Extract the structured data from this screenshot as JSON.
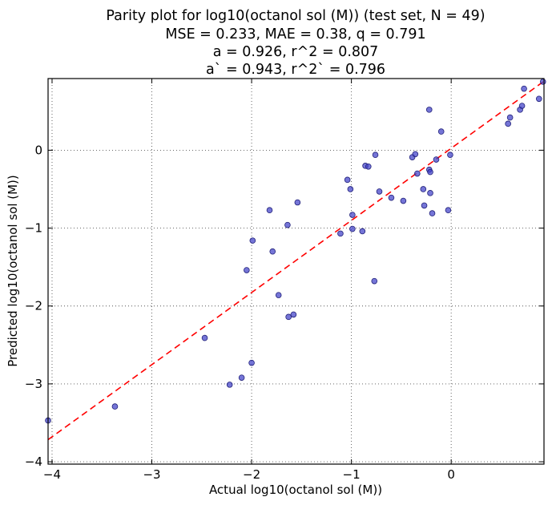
{
  "chart_data": {
    "type": "scatter",
    "title_lines": [
      "Parity plot for log10(octanol sol (M)) (test set, N = 49)",
      "MSE = 0.233, MAE = 0.38, q = 0.791",
      "a = 0.926, r^2 = 0.807",
      "a` = 0.943, r^2` = 0.796"
    ],
    "xlabel": "Actual log10(octanol sol (M))",
    "ylabel": "Predicted log10(octanol sol (M))",
    "xlim": [
      -4.04,
      0.93
    ],
    "ylim": [
      -4.03,
      0.92
    ],
    "xticks": [
      -4,
      -3,
      -2,
      -1,
      0
    ],
    "yticks": [
      -4,
      -3,
      -2,
      -1,
      0
    ],
    "tick_labels": {
      "x": [
        "−4",
        "−3",
        "−2",
        "−1",
        "0"
      ],
      "y": [
        "−4",
        "−3",
        "−2",
        "−1",
        "0"
      ]
    },
    "grid": true,
    "marker_color": "#4040c8",
    "fit_line": {
      "color": "#ff0000",
      "style": "dashed",
      "slope": 0.926,
      "intercept": 0.025
    },
    "points": [
      {
        "x": -4.04,
        "y": -3.47
      },
      {
        "x": -3.37,
        "y": -3.29
      },
      {
        "x": -2.47,
        "y": -2.41
      },
      {
        "x": -2.22,
        "y": -3.01
      },
      {
        "x": -2.1,
        "y": -2.92
      },
      {
        "x": -2.0,
        "y": -2.73
      },
      {
        "x": -2.05,
        "y": -1.54
      },
      {
        "x": -1.99,
        "y": -1.16
      },
      {
        "x": -1.82,
        "y": -0.77
      },
      {
        "x": -1.79,
        "y": -1.3
      },
      {
        "x": -1.73,
        "y": -1.86
      },
      {
        "x": -1.63,
        "y": -2.14
      },
      {
        "x": -1.58,
        "y": -2.11
      },
      {
        "x": -1.64,
        "y": -0.96
      },
      {
        "x": -1.54,
        "y": -0.67
      },
      {
        "x": -1.11,
        "y": -1.07
      },
      {
        "x": -1.04,
        "y": -0.38
      },
      {
        "x": -1.01,
        "y": -0.5
      },
      {
        "x": -0.99,
        "y": -0.83
      },
      {
        "x": -0.99,
        "y": -1.01
      },
      {
        "x": -0.89,
        "y": -1.04
      },
      {
        "x": -0.86,
        "y": -0.2
      },
      {
        "x": -0.83,
        "y": -0.21
      },
      {
        "x": -0.77,
        "y": -1.68
      },
      {
        "x": -0.76,
        "y": -0.06
      },
      {
        "x": -0.72,
        "y": -0.53
      },
      {
        "x": -0.6,
        "y": -0.61
      },
      {
        "x": -0.48,
        "y": -0.65
      },
      {
        "x": -0.39,
        "y": -0.09
      },
      {
        "x": -0.36,
        "y": -0.05
      },
      {
        "x": -0.34,
        "y": -0.3
      },
      {
        "x": -0.28,
        "y": -0.5
      },
      {
        "x": -0.27,
        "y": -0.71
      },
      {
        "x": -0.22,
        "y": -0.25
      },
      {
        "x": -0.21,
        "y": -0.55
      },
      {
        "x": -0.21,
        "y": -0.28
      },
      {
        "x": -0.19,
        "y": -0.81
      },
      {
        "x": -0.22,
        "y": 0.52
      },
      {
        "x": -0.15,
        "y": -0.12
      },
      {
        "x": -0.1,
        "y": 0.24
      },
      {
        "x": -0.03,
        "y": -0.77
      },
      {
        "x": -0.01,
        "y": -0.06
      },
      {
        "x": 0.57,
        "y": 0.34
      },
      {
        "x": 0.59,
        "y": 0.42
      },
      {
        "x": 0.69,
        "y": 0.52
      },
      {
        "x": 0.71,
        "y": 0.57
      },
      {
        "x": 0.73,
        "y": 0.79
      },
      {
        "x": 0.88,
        "y": 0.66
      },
      {
        "x": 0.92,
        "y": 0.88
      }
    ]
  }
}
